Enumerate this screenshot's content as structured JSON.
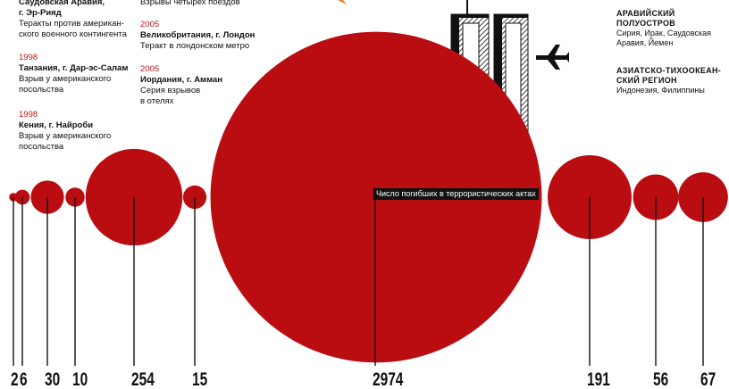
{
  "notes_left": [
    {
      "year": "",
      "place": "Саудовская Аравия,",
      "place2": "г. Эр-Рияд",
      "desc": "Теракты против американ-",
      "desc2": "ского военного контингента"
    },
    {
      "year": "1998",
      "place": "Танзания, г. Дар-эс-Салам",
      "place2": "",
      "desc": "Взрыв у американского",
      "desc2": "посольства"
    },
    {
      "year": "1998",
      "place": "Кения, г. Найроби",
      "place2": "",
      "desc": "Взрыв у американского",
      "desc2": "посольства"
    }
  ],
  "notes_mid": [
    {
      "year": "",
      "place": "",
      "desc": "Взрывы четырех поездов",
      "desc2": ""
    },
    {
      "year": "2005",
      "place": "Великобритания, г. Лондон",
      "desc": "Теракт в лондонском метро",
      "desc2": ""
    },
    {
      "year": "2005",
      "place": "Иордания, г. Амман",
      "desc": "Серия взрывов",
      "desc2": "в отелях"
    }
  ],
  "regions": [
    {
      "name1": "Аравийский",
      "name2": "полуостров",
      "list1": "Сирия, Ирак, Саудовская",
      "list2": "Аравия, Йемен"
    },
    {
      "name1": "Азиатско-Тихоокеан-",
      "name2": "ский регион",
      "list1": "Индонезия, Филиппины",
      "list2": ""
    }
  ],
  "chart_label": "Число погибших в террористических актах",
  "colors": {
    "accent": "#b90d12",
    "year": "#c0161b",
    "ink": "#111111"
  },
  "chart_data": {
    "type": "bubble",
    "title": "",
    "metric": "Число погибших в террористических актах",
    "values": [
      2,
      6,
      30,
      10,
      254,
      15,
      2974,
      191,
      56,
      67
    ],
    "labels": [
      "2",
      "6",
      "30",
      "10",
      "254",
      "15",
      "2974",
      "191",
      "56",
      "67"
    ]
  }
}
